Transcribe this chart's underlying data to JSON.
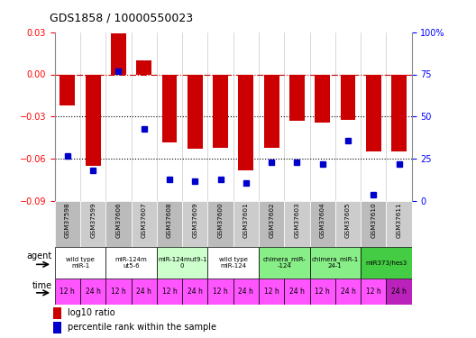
{
  "title": "GDS1858 / 10000550023",
  "samples": [
    "GSM37598",
    "GSM37599",
    "GSM37606",
    "GSM37607",
    "GSM37608",
    "GSM37609",
    "GSM37600",
    "GSM37601",
    "GSM37602",
    "GSM37603",
    "GSM37604",
    "GSM37605",
    "GSM37610",
    "GSM37611"
  ],
  "log10_ratio": [
    -0.022,
    -0.065,
    0.029,
    0.01,
    -0.048,
    -0.053,
    -0.052,
    -0.068,
    -0.052,
    -0.033,
    -0.034,
    -0.032,
    -0.055,
    -0.055
  ],
  "percentile": [
    27,
    18,
    77,
    43,
    13,
    12,
    13,
    11,
    23,
    23,
    22,
    36,
    4,
    22
  ],
  "bar_color": "#cc0000",
  "dot_color": "#0000cc",
  "ylim_left": [
    -0.09,
    0.03
  ],
  "ylim_right": [
    0,
    100
  ],
  "yticks_left": [
    -0.09,
    -0.06,
    -0.03,
    0.0,
    0.03
  ],
  "yticks_right": [
    0,
    25,
    50,
    75,
    100
  ],
  "agent_groups": [
    {
      "label": "wild type\nmiR-1",
      "span": [
        0,
        2
      ],
      "color": "#ffffff"
    },
    {
      "label": "miR-124m\nut5-6",
      "span": [
        2,
        4
      ],
      "color": "#ffffff"
    },
    {
      "label": "miR-124mut9-1\n0",
      "span": [
        4,
        6
      ],
      "color": "#ccffcc"
    },
    {
      "label": "wild type\nmiR-124",
      "span": [
        6,
        8
      ],
      "color": "#ffffff"
    },
    {
      "label": "chimera_miR-\n-124",
      "span": [
        8,
        10
      ],
      "color": "#88ee88"
    },
    {
      "label": "chimera_miR-1\n24-1",
      "span": [
        10,
        12
      ],
      "color": "#88ee88"
    },
    {
      "label": "miR373/hes3",
      "span": [
        12,
        14
      ],
      "color": "#44cc44"
    }
  ],
  "time_labels": [
    "12 h",
    "24 h",
    "12 h",
    "24 h",
    "12 h",
    "24 h",
    "12 h",
    "24 h",
    "12 h",
    "24 h",
    "12 h",
    "24 h",
    "12 h",
    "24 h"
  ],
  "time_color": "#ff55ff",
  "time_color_last": "#bb22bb",
  "grid_color_dashed": "#cc0000",
  "grid_color_dotted": "#000000",
  "sample_bg_even": "#bbbbbb",
  "sample_bg_odd": "#cccccc"
}
